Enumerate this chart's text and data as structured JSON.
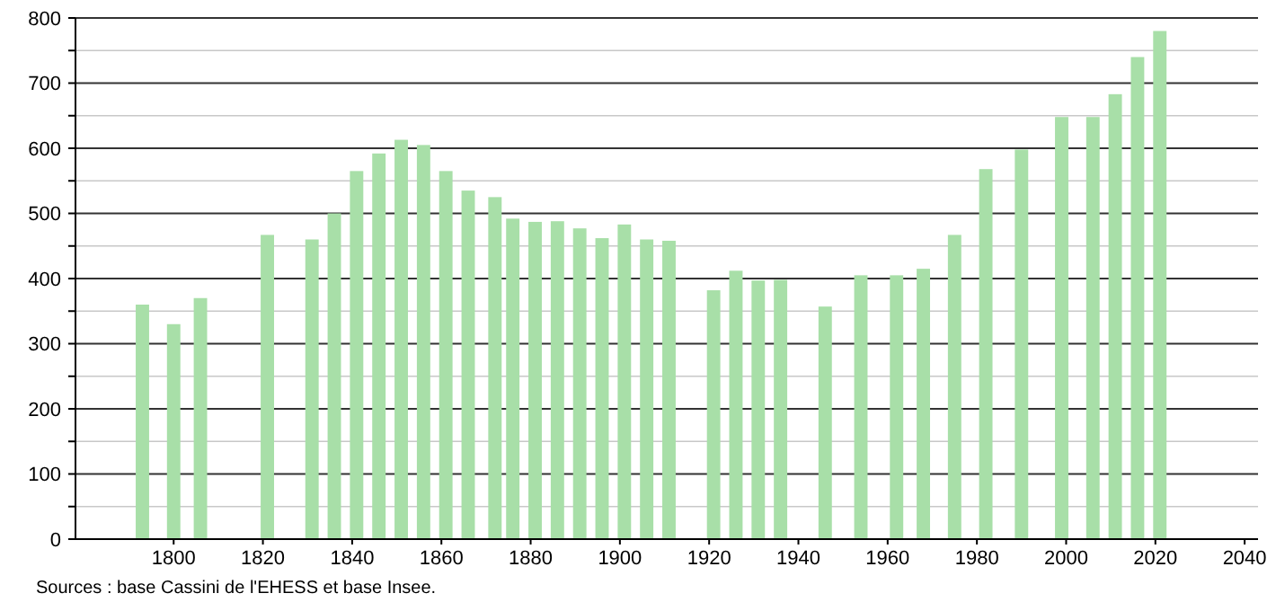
{
  "chart_data": {
    "type": "bar",
    "x": [
      1793,
      1800,
      1806,
      1821,
      1831,
      1836,
      1841,
      1846,
      1851,
      1856,
      1861,
      1866,
      1872,
      1876,
      1881,
      1886,
      1891,
      1896,
      1901,
      1906,
      1911,
      1921,
      1926,
      1931,
      1936,
      1946,
      1954,
      1962,
      1968,
      1975,
      1982,
      1990,
      1999,
      2006,
      2011,
      2016,
      2021
    ],
    "values": [
      360,
      330,
      370,
      467,
      460,
      500,
      565,
      592,
      613,
      605,
      565,
      535,
      525,
      492,
      487,
      488,
      477,
      462,
      483,
      460,
      458,
      382,
      412,
      397,
      398,
      357,
      405,
      405,
      415,
      467,
      568,
      598,
      648,
      648,
      683,
      740,
      780
    ],
    "color": "#a8dfa8",
    "xlim": [
      1778,
      2043
    ],
    "xticks": [
      1800,
      1820,
      1840,
      1860,
      1880,
      1900,
      1920,
      1940,
      1960,
      1980,
      2000,
      2020,
      2040
    ],
    "ylim": [
      0,
      800
    ],
    "yticks": [
      0,
      {
        "value": 50,
        "label": null
      },
      100,
      {
        "value": 150,
        "label": null
      },
      200,
      {
        "value": 250,
        "label": null
      },
      300,
      {
        "value": 350,
        "label": null
      },
      400,
      {
        "value": 450,
        "label": null
      },
      500,
      {
        "value": 550,
        "label": null
      },
      600,
      {
        "value": 650,
        "label": null
      },
      700,
      {
        "value": 750,
        "label": null
      },
      800
    ],
    "grid": "y",
    "annotations": [
      "Sources : base Cassini de l'EHESS et base Insee."
    ]
  }
}
